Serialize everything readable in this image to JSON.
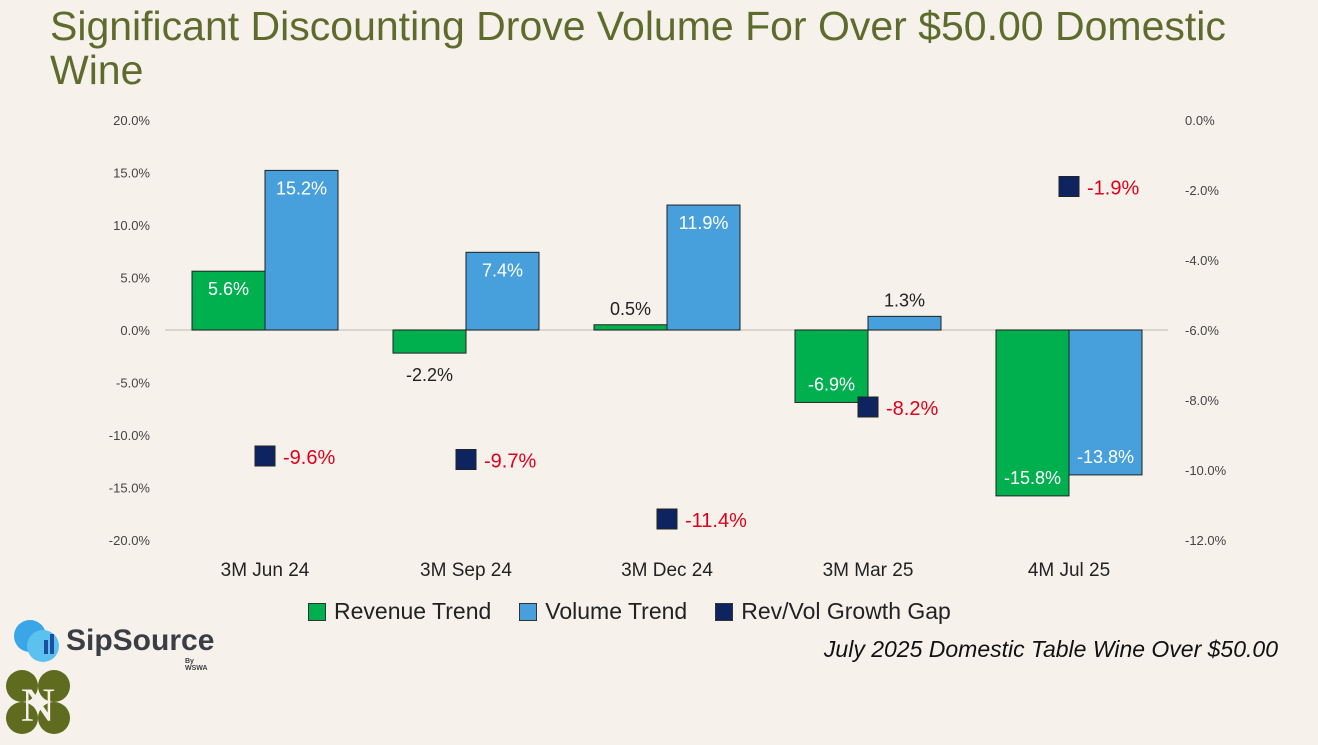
{
  "title": "Significant Discounting Drove Volume For Over $50.00 Domestic Wine",
  "source_note": "July 2025 Domestic Table Wine Over $50.00",
  "logos": {
    "sipsource": "SipSource",
    "sipsource_by": "By WSWA",
    "second": "N"
  },
  "colors": {
    "revenue": "#00b04f",
    "volume": "#479fdc",
    "gap": "#0e2460",
    "gap_label": "#e0001b",
    "title": "#5f6b2c"
  },
  "chart_data": {
    "type": "bar",
    "title": "Significant Discounting Drove Volume For Over $50.00 Domestic Wine",
    "categories": [
      "3M  Jun 24",
      "3M  Sep 24",
      "3M  Dec 24",
      "3M  Mar 25",
      "4M  Jul 25"
    ],
    "series": [
      {
        "name": "Revenue Trend",
        "axis": "left",
        "kind": "bar",
        "values": [
          5.6,
          -2.2,
          0.5,
          -6.9,
          -15.8
        ],
        "labels": [
          "5.6%",
          "-2.2%",
          "0.5%",
          "-6.9%",
          "-15.8%"
        ]
      },
      {
        "name": "Volume Trend",
        "axis": "left",
        "kind": "bar",
        "values": [
          15.2,
          7.4,
          11.9,
          1.3,
          -13.8
        ],
        "labels": [
          "15.2%",
          "7.4%",
          "11.9%",
          "1.3%",
          "-13.8%"
        ]
      },
      {
        "name": "Rev/Vol Growth Gap",
        "axis": "right",
        "kind": "marker",
        "values": [
          -9.6,
          -9.7,
          -11.4,
          -8.2,
          -1.9
        ],
        "labels": [
          "-9.6%",
          "-9.7%",
          "-11.4%",
          "-8.2%",
          "-1.9%"
        ]
      }
    ],
    "left_axis": {
      "ylim": [
        -20,
        20
      ],
      "ticks": [
        "20.0%",
        "15.0%",
        "10.0%",
        "5.0%",
        "0.0%",
        "-5.0%",
        "-10.0%",
        "-15.0%",
        "-20.0%"
      ],
      "tick_values": [
        20,
        15,
        10,
        5,
        0,
        -5,
        -10,
        -15,
        -20
      ]
    },
    "right_axis": {
      "ylim": [
        -12,
        0
      ],
      "ticks": [
        "0.0%",
        "-2.0%",
        "-4.0%",
        "-6.0%",
        "-8.0%",
        "-10.0%",
        "-12.0%"
      ],
      "tick_values": [
        0,
        -2,
        -4,
        -6,
        -8,
        -10,
        -12
      ]
    },
    "legend": "bottom",
    "grid": false
  }
}
